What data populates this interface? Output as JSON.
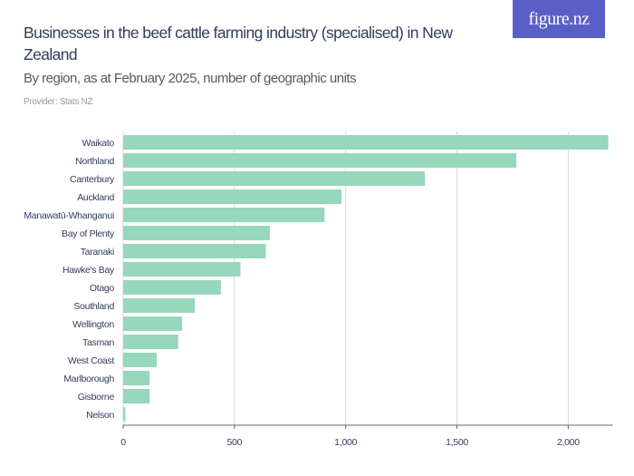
{
  "header": {
    "title": "Businesses in the beef cattle farming industry (specialised) in New Zealand",
    "subtitle": "By region, as at February 2025, number of geographic units",
    "provider": "Provider: Stats NZ",
    "logo": "figure.nz"
  },
  "colors": {
    "bar": "#97d7bc",
    "logo_bg": "#5a5fc8",
    "grid": "#d9d9d9",
    "axis": "#666666"
  },
  "chart_data": {
    "type": "bar",
    "orientation": "horizontal",
    "title": "Businesses in the beef cattle farming industry (specialised) in New Zealand",
    "subtitle": "By region, as at February 2025, number of geographic units",
    "categories": [
      "Waikato",
      "Northland",
      "Canterbury",
      "Auckland",
      "Manawatū-Whanganui",
      "Bay of Plenty",
      "Taranaki",
      "Hawke's Bay",
      "Otago",
      "Southland",
      "Wellington",
      "Tasman",
      "West Coast",
      "Marlborough",
      "Gisborne",
      "Nelson"
    ],
    "values": [
      2180,
      1767,
      1356,
      981,
      905,
      659,
      641,
      527,
      439,
      322,
      265,
      247,
      151,
      119,
      119,
      10
    ],
    "xlim": [
      0,
      2200
    ],
    "ticks": [
      0,
      500,
      1000,
      1500,
      2000
    ],
    "tick_labels": [
      "0",
      "500",
      "1,000",
      "1,500",
      "2,000"
    ],
    "grid": true
  }
}
